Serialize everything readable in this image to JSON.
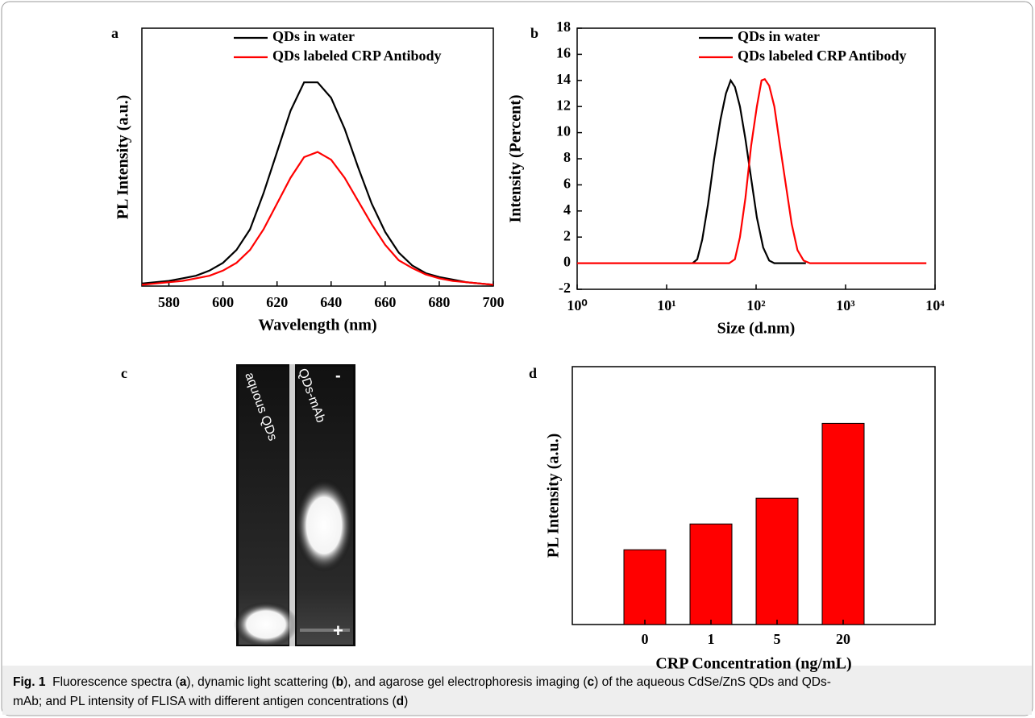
{
  "chart_data": [
    {
      "type": "line",
      "label": "a",
      "xlabel": "Wavelength (nm)",
      "ylabel": "PL Intensity (a.u.)",
      "xlim": [
        570,
        700
      ],
      "xticks": [
        580,
        600,
        620,
        640,
        660,
        680,
        700
      ],
      "ylim": [
        0,
        1
      ],
      "legend": "upper right",
      "series": [
        {
          "name": "QDs in water",
          "color": "#000000",
          "x": [
            570,
            575,
            580,
            585,
            590,
            595,
            600,
            605,
            610,
            615,
            620,
            625,
            630,
            635,
            640,
            645,
            650,
            655,
            660,
            665,
            670,
            675,
            680,
            685,
            690,
            695,
            700
          ],
          "values": [
            0.01,
            0.015,
            0.02,
            0.03,
            0.04,
            0.06,
            0.09,
            0.14,
            0.22,
            0.36,
            0.52,
            0.68,
            0.79,
            0.79,
            0.73,
            0.61,
            0.46,
            0.32,
            0.21,
            0.13,
            0.08,
            0.05,
            0.035,
            0.025,
            0.015,
            0.01,
            0.005
          ]
        },
        {
          "name": "QDs labeled CRP Antibody",
          "color": "#ff0000",
          "x": [
            570,
            575,
            580,
            585,
            590,
            595,
            600,
            605,
            610,
            615,
            620,
            625,
            630,
            635,
            640,
            645,
            650,
            655,
            660,
            665,
            670,
            675,
            680,
            685,
            690,
            695,
            700
          ],
          "values": [
            0.005,
            0.01,
            0.015,
            0.02,
            0.03,
            0.04,
            0.06,
            0.09,
            0.14,
            0.22,
            0.32,
            0.42,
            0.5,
            0.52,
            0.49,
            0.42,
            0.33,
            0.24,
            0.16,
            0.1,
            0.07,
            0.045,
            0.03,
            0.02,
            0.015,
            0.01,
            0.005
          ]
        }
      ]
    },
    {
      "type": "line",
      "label": "b",
      "xlabel": "Size (d.nm)",
      "ylabel": "Intensity (Percent)",
      "xscale": "log",
      "xlim": [
        1,
        10000
      ],
      "xticks": [
        {
          "value": 1,
          "label": "10⁰"
        },
        {
          "value": 10,
          "label": "10¹"
        },
        {
          "value": 100,
          "label": "10²"
        },
        {
          "value": 1000,
          "label": "10³"
        },
        {
          "value": 10000,
          "label": "10⁴"
        }
      ],
      "ylim": [
        -2,
        18
      ],
      "yticks": [
        -2,
        0,
        2,
        4,
        6,
        8,
        10,
        12,
        14,
        16,
        18
      ],
      "legend": "upper right",
      "series": [
        {
          "name": "QDs in water",
          "color": "#000000",
          "x": [
            19.5,
            22,
            25,
            29,
            34,
            40,
            46,
            52,
            58,
            66,
            76,
            88,
            102,
            120,
            140,
            160,
            360
          ],
          "values": [
            0,
            0.3,
            1.8,
            4.5,
            8,
            11,
            13,
            14,
            13.5,
            12,
            9.5,
            6.5,
            3.5,
            1.2,
            0.2,
            0,
            0
          ]
        },
        {
          "name": "QDs labeled CRP Antibody",
          "color": "#ff0000",
          "x": [
            1,
            50,
            58,
            66,
            76,
            88,
            102,
            115,
            125,
            140,
            160,
            185,
            215,
            250,
            290,
            340,
            400,
            8000
          ],
          "values": [
            0,
            0,
            0.3,
            2,
            5,
            9,
            12,
            14,
            14.1,
            13.6,
            12,
            9,
            6,
            3,
            1,
            0.2,
            0,
            0
          ]
        }
      ]
    },
    {
      "type": "bar",
      "label": "d",
      "xlabel": "CRP Concentration (ng/mL)",
      "ylabel": "PL Intensity (a.u.)",
      "categories": [
        "0",
        "1",
        "5",
        "20"
      ],
      "values": [
        0.29,
        0.39,
        0.49,
        0.78
      ],
      "color": "#ff0000",
      "ylim": [
        0,
        1
      ]
    }
  ],
  "gel_image": {
    "label": "c",
    "lanes": [
      "aquous QDs",
      "QDs-mAb"
    ],
    "markers": [
      "-",
      "+"
    ]
  },
  "caption": {
    "lines": [
      [
        {
          "text": "Fig. 1",
          "bold": true
        },
        {
          "text": "  Fluorescence spectra (",
          "bold": false
        },
        {
          "text": "a",
          "bold": true
        },
        {
          "text": "), dynamic light scattering (",
          "bold": false
        },
        {
          "text": "b",
          "bold": true
        },
        {
          "text": "), and agarose gel electrophoresis imaging (",
          "bold": false
        },
        {
          "text": "c",
          "bold": true
        },
        {
          "text": ") of the aqueous CdSe/ZnS QDs and QDs-",
          "bold": false
        }
      ],
      [
        {
          "text": "mAb; and PL intensity of FLISA with different antigen concentrations (",
          "bold": false
        },
        {
          "text": "d",
          "bold": true
        },
        {
          "text": ")",
          "bold": false
        }
      ]
    ]
  }
}
